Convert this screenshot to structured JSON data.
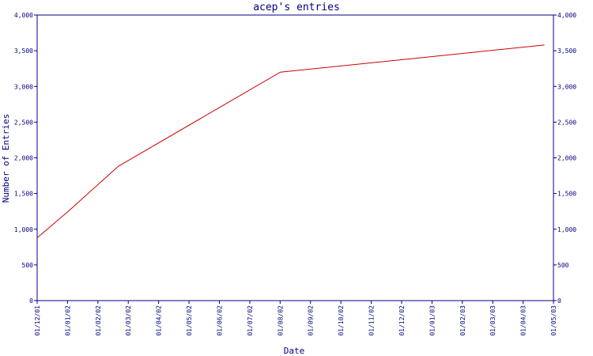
{
  "chart_data": {
    "type": "line",
    "title": "acep's entries",
    "xlabel": "Date",
    "ylabel": "Number of Entries",
    "ylim": [
      0,
      4000
    ],
    "yticks": [
      0,
      500,
      1000,
      1500,
      2000,
      2500,
      3000,
      3500,
      4000
    ],
    "ytick_labels": [
      "0",
      "500",
      "1,000",
      "1,500",
      "2,000",
      "2,500",
      "3,000",
      "3,500",
      "4,000"
    ],
    "xticks": [
      "01/12/01",
      "01/01/02",
      "01/02/02",
      "01/03/02",
      "01/04/02",
      "01/05/02",
      "01/06/02",
      "01/07/02",
      "01/08/02",
      "01/09/02",
      "01/10/02",
      "01/11/02",
      "01/12/02",
      "01/01/03",
      "01/02/03",
      "01/03/03",
      "01/04/03",
      "01/05/03"
    ],
    "xlim": [
      "2001-12-01",
      "2003-05-01"
    ],
    "grid": false,
    "legend": "none",
    "colors": {
      "axis": "#000080",
      "line": "#cc0000"
    },
    "series": [
      {
        "x": [
          "2001-12-01",
          "2002-01-01",
          "2002-02-20",
          "2002-08-01",
          "2003-04-22"
        ],
        "y": [
          880,
          1250,
          1880,
          3200,
          3580
        ]
      }
    ]
  }
}
